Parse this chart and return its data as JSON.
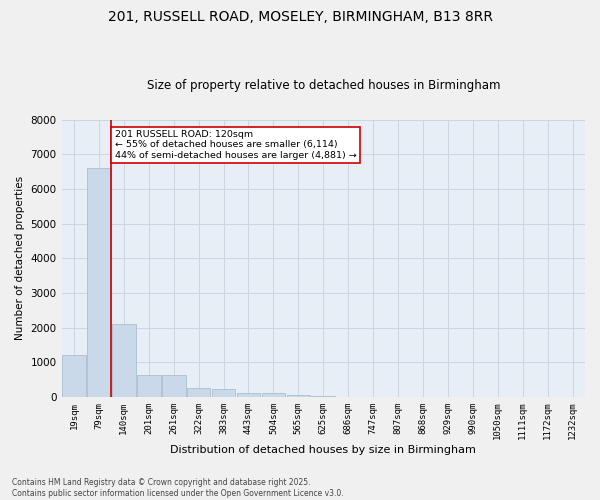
{
  "title1": "201, RUSSELL ROAD, MOSELEY, BIRMINGHAM, B13 8RR",
  "title2": "Size of property relative to detached houses in Birmingham",
  "xlabel": "Distribution of detached houses by size in Birmingham",
  "ylabel": "Number of detached properties",
  "bin_labels": [
    "19sqm",
    "79sqm",
    "140sqm",
    "201sqm",
    "261sqm",
    "322sqm",
    "383sqm",
    "443sqm",
    "504sqm",
    "565sqm",
    "625sqm",
    "686sqm",
    "747sqm",
    "807sqm",
    "868sqm",
    "929sqm",
    "990sqm",
    "1050sqm",
    "1111sqm",
    "1172sqm",
    "1232sqm"
  ],
  "values": [
    1200,
    6600,
    2100,
    620,
    620,
    270,
    220,
    120,
    110,
    70,
    30,
    10,
    5,
    3,
    2,
    1,
    1,
    0,
    0,
    0,
    0
  ],
  "bar_color": "#c9d9ea",
  "bar_edge_color": "#aabfcf",
  "property_bin_index": 1,
  "vline_after_index": 1,
  "vline_color": "#cc0000",
  "annotation_text": "201 RUSSELL ROAD: 120sqm\n← 55% of detached houses are smaller (6,114)\n44% of semi-detached houses are larger (4,881) →",
  "annotation_box_facecolor": "#ffffff",
  "annotation_box_edgecolor": "#cc0000",
  "grid_color": "#ccd5e0",
  "background_color": "#e8eef5",
  "fig_facecolor": "#f0f0f0",
  "footer1": "Contains HM Land Registry data © Crown copyright and database right 2025.",
  "footer2": "Contains public sector information licensed under the Open Government Licence v3.0.",
  "ylim": [
    0,
    8000
  ],
  "yticks": [
    0,
    1000,
    2000,
    3000,
    4000,
    5000,
    6000,
    7000,
    8000
  ]
}
